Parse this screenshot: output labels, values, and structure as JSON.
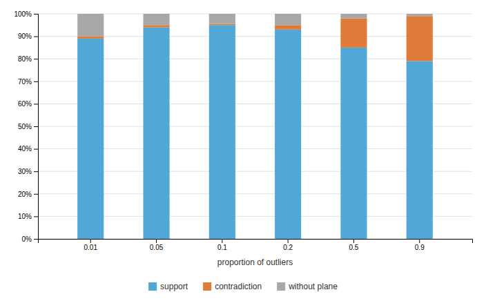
{
  "chart_data": {
    "type": "bar",
    "stacked": true,
    "xlabel": "proportion of outliers",
    "categories": [
      "0.01",
      "0.05",
      "0.1",
      "0.2",
      "0.5",
      "0.9"
    ],
    "series": [
      {
        "name": "support",
        "color": "#4fa8d5",
        "values": [
          89.0,
          94.0,
          95.0,
          93.0,
          85.0,
          79.0
        ]
      },
      {
        "name": "contradiction",
        "color": "#e07b39",
        "values": [
          1.0,
          1.0,
          0.5,
          2.0,
          13.0,
          20.0
        ]
      },
      {
        "name": "without plane",
        "color": "#a8a8a8",
        "values": [
          10.0,
          5.0,
          4.5,
          5.0,
          2.0,
          1.0
        ]
      }
    ],
    "ylim": [
      0,
      100
    ],
    "yticks": [
      {
        "value": 0,
        "label": "0%"
      },
      {
        "value": 10,
        "label": "10%"
      },
      {
        "value": 20,
        "label": "20%"
      },
      {
        "value": 30,
        "label": "30%"
      },
      {
        "value": 40,
        "label": "40%"
      },
      {
        "value": 50,
        "label": "50%"
      },
      {
        "value": 60,
        "label": "60%"
      },
      {
        "value": 70,
        "label": "70%"
      },
      {
        "value": 80,
        "label": "80%"
      },
      {
        "value": 90,
        "label": "90%"
      },
      {
        "value": 100,
        "label": "100%"
      }
    ],
    "grid": true,
    "legend": "bottom"
  }
}
